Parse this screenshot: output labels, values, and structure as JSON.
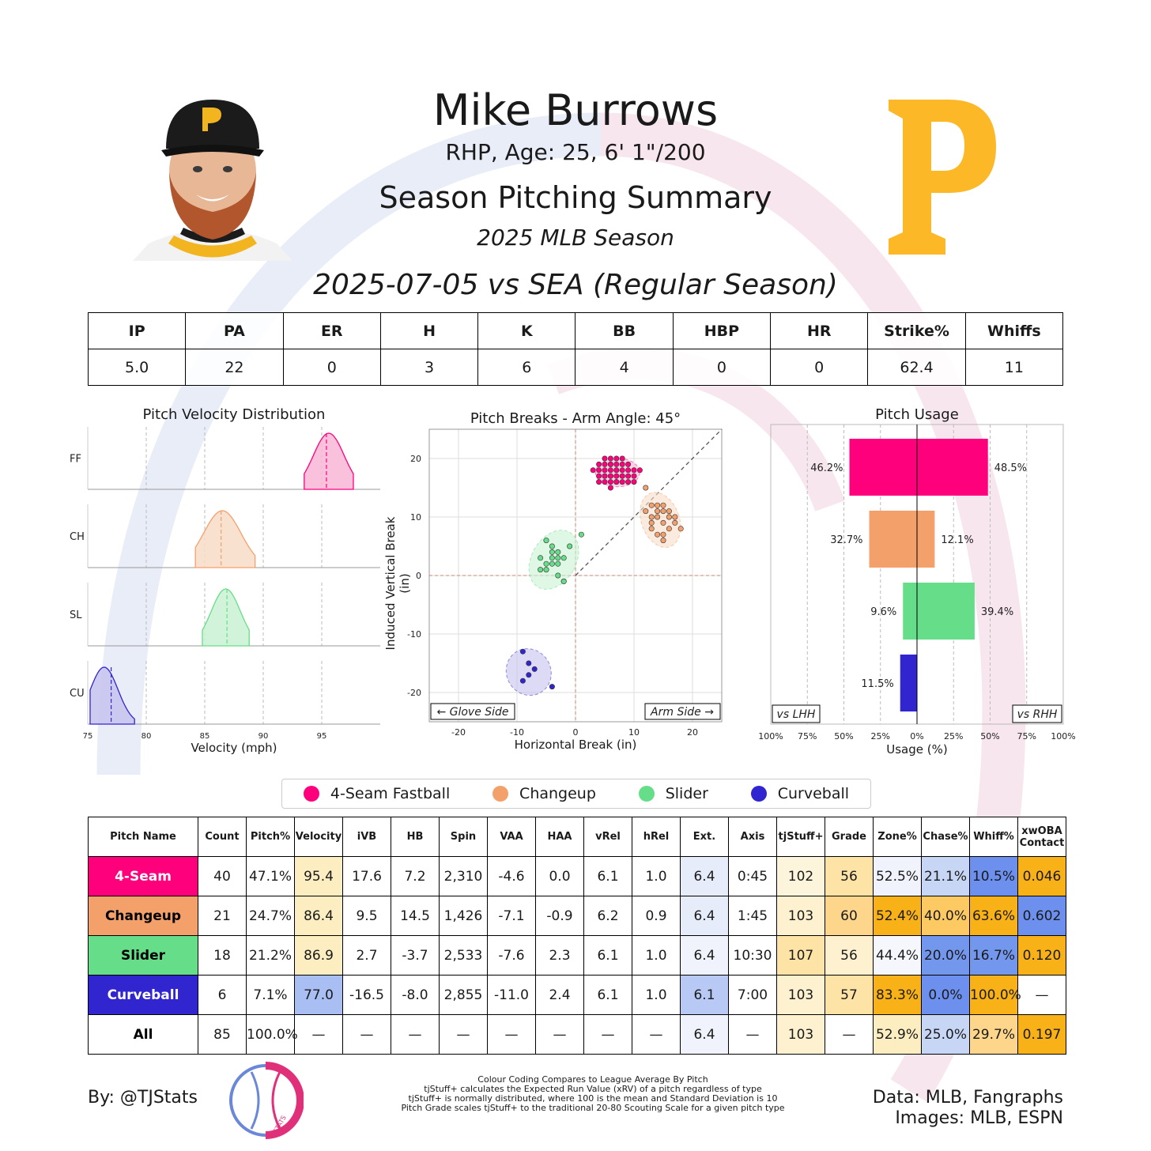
{
  "header": {
    "player_name": "Mike Burrows",
    "bio": "RHP, Age: 25, 6' 1\"/200",
    "subtitle": "Season Pitching Summary",
    "season": "2025 MLB Season",
    "game": "2025-07-05 vs SEA (Regular Season)"
  },
  "game_stats": {
    "headers": [
      "IP",
      "PA",
      "ER",
      "H",
      "K",
      "BB",
      "HBP",
      "HR",
      "Strike%",
      "Whiffs"
    ],
    "values": [
      "5.0",
      "22",
      "0",
      "3",
      "6",
      "4",
      "0",
      "0",
      "62.4",
      "11"
    ]
  },
  "colors": {
    "ff": "#ff007d",
    "ch": "#f4a06b",
    "sl": "#66dd88",
    "cu": "#3025ce",
    "gold": "#fdb827",
    "cap": "#1b1b1b"
  },
  "chart_data": [
    {
      "type": "area",
      "title": "Pitch Velocity Distribution",
      "xlabel": "Velocity (mph)",
      "xlim": [
        75,
        100
      ],
      "xticks": [
        "75",
        "80",
        "85",
        "90",
        "95"
      ],
      "series": [
        {
          "name": "FF",
          "range": [
            93.5,
            97.7
          ],
          "mean": 95.4,
          "peak": 95.6
        },
        {
          "name": "CH",
          "range": [
            84.2,
            89.3
          ],
          "mean": 86.4,
          "peak": 86.5
        },
        {
          "name": "SL",
          "range": [
            84.8,
            88.8
          ],
          "mean": 86.9,
          "peak": 86.8
        },
        {
          "name": "CU",
          "range": [
            75.2,
            79.0
          ],
          "mean": 77.0,
          "peak": 76.4
        }
      ]
    },
    {
      "type": "scatter",
      "title": "Pitch Breaks - Arm Angle: 45°",
      "xlabel": "Horizontal Break (in)",
      "ylabel": "Induced Vertical Break (in)",
      "xlim": [
        -25,
        25
      ],
      "ylim": [
        -25,
        25
      ],
      "xticks": [
        "-20",
        "-10",
        "0",
        "10",
        "20"
      ],
      "yticks": [
        "20",
        "10",
        "0",
        "-10",
        "-20"
      ],
      "annotations": [
        "← Glove Side",
        "Arm Side →"
      ],
      "series": [
        {
          "name": "4-Seam Fastball",
          "center": [
            7.2,
            17.6
          ],
          "points": [
            [
              4,
              18
            ],
            [
              5,
              17
            ],
            [
              6,
              19
            ],
            [
              7,
              18
            ],
            [
              8,
              17
            ],
            [
              6,
              16
            ],
            [
              9,
              18
            ],
            [
              5,
              19
            ],
            [
              7,
              16
            ],
            [
              8,
              19
            ],
            [
              4,
              17
            ],
            [
              6,
              18
            ],
            [
              10,
              17
            ],
            [
              7,
              19
            ],
            [
              5,
              16
            ],
            [
              9,
              16
            ],
            [
              6,
              17
            ],
            [
              8,
              18
            ],
            [
              3,
              18
            ],
            [
              7,
              17
            ],
            [
              10,
              18
            ],
            [
              6,
              20
            ],
            [
              5,
              18
            ],
            [
              8,
              16
            ],
            [
              9,
              19
            ],
            [
              4,
              16
            ],
            [
              7,
              20
            ],
            [
              6,
              15
            ],
            [
              11,
              18
            ],
            [
              5,
              17
            ],
            [
              8,
              17
            ],
            [
              7,
              18
            ],
            [
              6,
              19
            ],
            [
              9,
              17
            ],
            [
              4,
              19
            ],
            [
              7,
              16
            ],
            [
              8,
              20
            ],
            [
              5,
              20
            ],
            [
              10,
              16
            ],
            [
              6,
              17
            ]
          ]
        },
        {
          "name": "Changeup",
          "center": [
            14.5,
            9.5
          ],
          "points": [
            [
              12,
              15
            ],
            [
              13,
              12
            ],
            [
              14,
              11
            ],
            [
              15,
              9
            ],
            [
              16,
              10
            ],
            [
              13,
              8
            ],
            [
              15,
              11
            ],
            [
              17,
              9
            ],
            [
              14,
              7
            ],
            [
              16,
              8
            ],
            [
              12,
              11
            ],
            [
              15,
              12
            ],
            [
              13,
              10
            ],
            [
              18,
              8
            ],
            [
              14,
              10
            ],
            [
              16,
              11
            ],
            [
              15,
              7
            ],
            [
              13,
              9
            ],
            [
              17,
              10
            ],
            [
              14,
              12
            ],
            [
              15,
              6
            ]
          ]
        },
        {
          "name": "Slider",
          "center": [
            -3.7,
            2.7
          ],
          "points": [
            [
              -5,
              6
            ],
            [
              -4,
              5
            ],
            [
              -3,
              4
            ],
            [
              -6,
              3
            ],
            [
              -4,
              2
            ],
            [
              -2,
              3
            ],
            [
              -5,
              1
            ],
            [
              -3,
              2
            ],
            [
              -4,
              4
            ],
            [
              -6,
              1
            ],
            [
              -3,
              0
            ],
            [
              -2,
              -1
            ],
            [
              -4,
              3
            ],
            [
              -1,
              5
            ],
            [
              1,
              7
            ],
            [
              -5,
              2
            ],
            [
              -3,
              3
            ],
            [
              -2,
              -1
            ]
          ]
        },
        {
          "name": "Curveball",
          "center": [
            -8.0,
            -16.5
          ],
          "points": [
            [
              -9,
              -13
            ],
            [
              -8,
              -15
            ],
            [
              -7,
              -16
            ],
            [
              -8,
              -17
            ],
            [
              -9,
              -18
            ],
            [
              -4,
              -19
            ]
          ]
        }
      ]
    },
    {
      "type": "bar",
      "title": "Pitch Usage",
      "xlabel": "Usage (%)",
      "xticks": [
        "100%",
        "75%",
        "50%",
        "25%",
        "0%",
        "25%",
        "50%",
        "75%",
        "100%"
      ],
      "labels": [
        "vs LHH",
        "vs RHH"
      ],
      "categories": [
        "4-Seam Fastball",
        "Changeup",
        "Slider",
        "Curveball"
      ],
      "series": [
        {
          "name": "vs LHH",
          "values": [
            46.2,
            32.7,
            9.6,
            11.5
          ],
          "value_labels": [
            "46.2%",
            "32.7%",
            "9.6%",
            "11.5%"
          ]
        },
        {
          "name": "vs RHH",
          "values": [
            48.5,
            12.1,
            39.4,
            0.0
          ],
          "value_labels": [
            "48.5%",
            "12.1%",
            "39.4%",
            ""
          ]
        }
      ]
    }
  ],
  "legend": [
    "4-Seam Fastball",
    "Changeup",
    "Slider",
    "Curveball"
  ],
  "pitch_table": {
    "headers": [
      "Pitch Name",
      "Count",
      "Pitch%",
      "Velocity",
      "iVB",
      "HB",
      "Spin",
      "VAA",
      "HAA",
      "vRel",
      "hRel",
      "Ext.",
      "Axis",
      "tjStuff+",
      "Grade",
      "Zone%",
      "Chase%",
      "Whiff%",
      "xwOBA\nContact"
    ],
    "rows": [
      {
        "name": "4-Seam",
        "key": "ff",
        "cells": [
          "40",
          "47.1%",
          "95.4",
          "17.6",
          "7.2",
          "2,310",
          "-4.6",
          "0.0",
          "6.1",
          "1.0",
          "6.4",
          "0:45",
          "102",
          "56",
          "52.5%",
          "21.1%",
          "10.5%",
          "0.046"
        ],
        "shades": {
          "3": "#fdeec2",
          "11": "#e6ecfa",
          "13": "#fdf4dc",
          "14": "#fde3a6",
          "15": "#f0f3fb",
          "16": "#c8d6f6",
          "17": "#6d90ee",
          "18": "#f8b117"
        }
      },
      {
        "name": "Changeup",
        "key": "ch",
        "cells": [
          "21",
          "24.7%",
          "86.4",
          "9.5",
          "14.5",
          "1,426",
          "-7.1",
          "-0.9",
          "6.2",
          "0.9",
          "6.4",
          "1:45",
          "103",
          "60",
          "52.4%",
          "40.0%",
          "63.6%",
          "0.602"
        ],
        "shades": {
          "3": "#fdeec2",
          "11": "#e6ecfa",
          "13": "#fdf1d0",
          "14": "#fdd68b",
          "15": "#f8b117",
          "16": "#fcc962",
          "17": "#f8b117",
          "18": "#6d90ee"
        }
      },
      {
        "name": "Slider",
        "key": "sl",
        "cells": [
          "18",
          "21.2%",
          "86.9",
          "2.7",
          "-3.7",
          "2,533",
          "-7.6",
          "2.3",
          "6.1",
          "1.0",
          "6.4",
          "10:30",
          "107",
          "56",
          "44.4%",
          "20.0%",
          "16.7%",
          "0.120"
        ],
        "shades": {
          "3": "#fdeec2",
          "11": "#f0f3fb",
          "13": "#fde3a6",
          "14": "#fdf1d0",
          "15": "#f5f7fc",
          "16": "#7497ee",
          "17": "#7497ee",
          "18": "#f8b117"
        }
      },
      {
        "name": "Curveball",
        "key": "cu",
        "cells": [
          "6",
          "7.1%",
          "77.0",
          "-16.5",
          "-8.0",
          "2,855",
          "-11.0",
          "2.4",
          "6.1",
          "1.0",
          "6.1",
          "7:00",
          "103",
          "57",
          "83.3%",
          "0.0%",
          "100.0%",
          "—"
        ],
        "shades": {
          "3": "#a9bff3",
          "11": "#b7c9f4",
          "13": "#fdf1d0",
          "14": "#fde3a6",
          "15": "#f8b117",
          "16": "#6d90ee",
          "17": "#f8b117"
        }
      },
      {
        "name": "All",
        "key": "all",
        "cells": [
          "85",
          "100.0%",
          "—",
          "—",
          "—",
          "—",
          "—",
          "—",
          "—",
          "—",
          "6.4",
          "—",
          "103",
          "—",
          "52.9%",
          "25.0%",
          "29.7%",
          "0.197"
        ],
        "shades": {
          "11": "#f0f3fb",
          "13": "#fdf1d0",
          "15": "#fdeec2",
          "16": "#c8d6f6",
          "17": "#fdd68b",
          "18": "#f8b117"
        }
      }
    ]
  },
  "footer": {
    "by": "By: @TJStats",
    "notes": [
      "Colour Coding Compares to League Average By Pitch",
      "tjStuff+ calculates the Expected Run Value (xRV) of a pitch regardless of type",
      "tjStuff+ is normally distributed, where 100 is the mean and Standard Deviation is 10",
      "Pitch Grade scales tjStuff+ to the traditional 20-80 Scouting Scale for a given pitch type"
    ],
    "source_1": "Data: MLB, Fangraphs",
    "source_2": "Images: MLB, ESPN",
    "logo_text": "STATS"
  }
}
